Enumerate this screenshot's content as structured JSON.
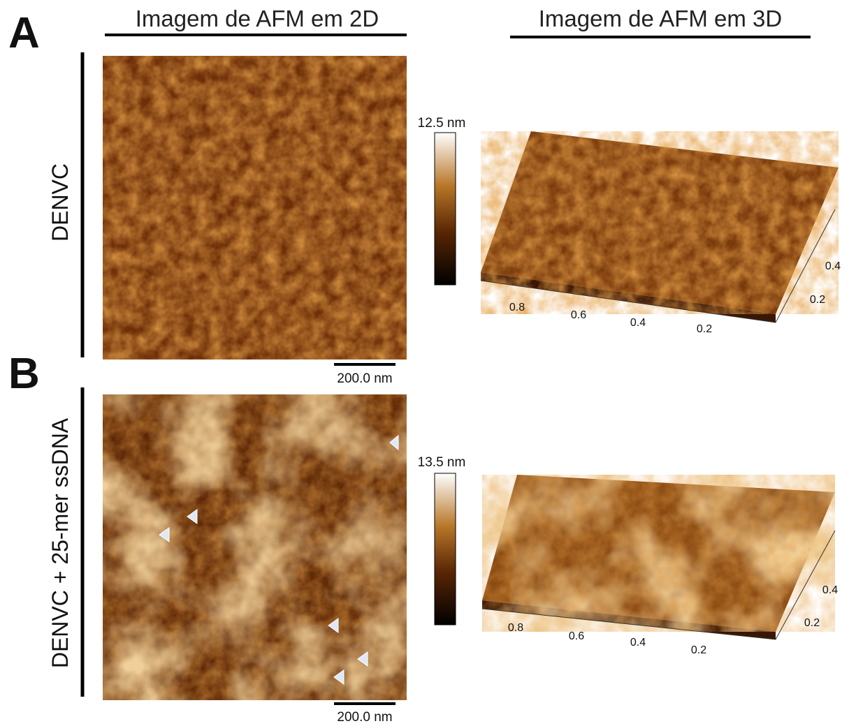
{
  "headers": {
    "left": "Imagem de AFM em 2D",
    "right": "Imagem de AFM em 3D"
  },
  "panels": [
    {
      "letter": "A",
      "label": "DENVC",
      "colorbar_max": "12.5 nm",
      "scale_bar": "200.0 nm",
      "x_ticks": [
        "0.8",
        "0.6",
        "0.4",
        "0.2"
      ],
      "y_ticks": [
        "0.4",
        "0.2"
      ]
    },
    {
      "letter": "B",
      "label": "DENVC + 25-mer ssDNA",
      "colorbar_max": "13.5 nm",
      "scale_bar": "200.0 nm",
      "x_ticks": [
        "0.8",
        "0.6",
        "0.4",
        "0.2"
      ],
      "y_ticks": [
        "0.4",
        "0.2"
      ]
    }
  ]
}
